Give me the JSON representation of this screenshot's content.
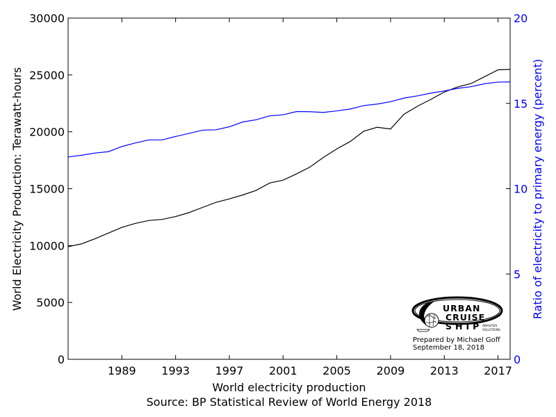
{
  "chart_data": {
    "type": "line",
    "xlabel": "World electricity production",
    "caption": "Source: BP Statistical Review of World Energy 2018",
    "x": [
      1985,
      1986,
      1987,
      1988,
      1989,
      1990,
      1991,
      1992,
      1993,
      1994,
      1995,
      1996,
      1997,
      1998,
      1999,
      2000,
      2001,
      2002,
      2003,
      2004,
      2005,
      2006,
      2007,
      2008,
      2009,
      2010,
      2011,
      2012,
      2013,
      2014,
      2015,
      2016,
      2017,
      2018
    ],
    "xlim": [
      1985,
      2017.9
    ],
    "xticks": [
      1989,
      1993,
      1997,
      2001,
      2005,
      2009,
      2013,
      2017
    ],
    "y_left": {
      "label": "World Electricity Production: Terawatt-hours",
      "lim": [
        0,
        30000
      ],
      "ticks": [
        0,
        5000,
        10000,
        15000,
        20000,
        25000,
        30000
      ],
      "color": "#000000"
    },
    "y_right": {
      "label": "Ratio of electricity to primary energy (percent)",
      "lim": [
        0,
        20
      ],
      "ticks": [
        0,
        5,
        10,
        15,
        20
      ],
      "color": "#0000ff"
    },
    "series": [
      {
        "axis": "left",
        "color": "#000000",
        "values": [
          9900,
          10150,
          10600,
          11100,
          11600,
          11950,
          12200,
          12300,
          12550,
          12900,
          13350,
          13800,
          14100,
          14450,
          14850,
          15500,
          15750,
          16300,
          16900,
          17750,
          18500,
          19150,
          20050,
          20400,
          20250,
          21550,
          22250,
          22850,
          23500,
          23950,
          24250,
          24850,
          25450,
          25500
        ]
      },
      {
        "axis": "right",
        "color": "#0000ff",
        "values": [
          11.86,
          11.96,
          12.09,
          12.17,
          12.47,
          12.68,
          12.86,
          12.86,
          13.06,
          13.24,
          13.43,
          13.45,
          13.63,
          13.91,
          14.04,
          14.27,
          14.33,
          14.52,
          14.51,
          14.47,
          14.56,
          14.67,
          14.87,
          14.96,
          15.1,
          15.31,
          15.44,
          15.6,
          15.73,
          15.88,
          15.98,
          16.15,
          16.25,
          16.26
        ]
      }
    ],
    "grid": false
  },
  "logo": {
    "line1": "URBAN",
    "line2": "CRUISE",
    "line3": "SHIP",
    "tagline1": "ANALYSIS",
    "tagline2": "SOLUTIONS",
    "credit1": "Prepared by Michael Goff",
    "credit2": "September 18, 2018"
  }
}
